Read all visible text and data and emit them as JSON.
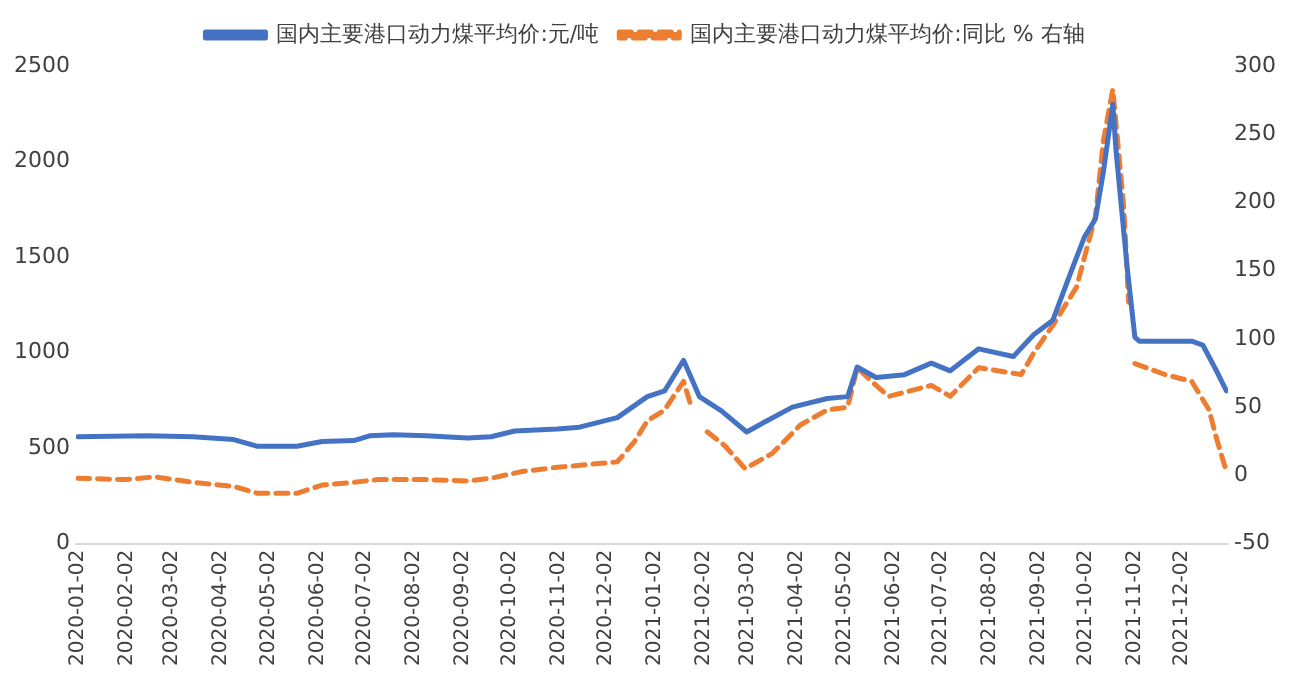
{
  "chart_data": {
    "type": "line",
    "legend": "top",
    "grid": false,
    "marker": "none",
    "xlim": [
      "2020-01-01",
      "2021-12-31"
    ],
    "xticks": [
      "2020-01-02",
      "2020-02-02",
      "2020-03-02",
      "2020-04-02",
      "2020-05-02",
      "2020-06-02",
      "2020-07-02",
      "2020-08-02",
      "2020-09-02",
      "2020-10-02",
      "2020-11-02",
      "2020-12-02",
      "2021-01-02",
      "2021-02-02",
      "2021-03-02",
      "2021-04-02",
      "2021-05-02",
      "2021-06-02",
      "2021-07-02",
      "2021-08-02",
      "2021-09-02",
      "2021-10-02",
      "2021-11-02",
      "2021-12-02"
    ],
    "ylim": [
      0,
      2500
    ],
    "yticks": [
      0,
      500,
      1000,
      1500,
      2000,
      2500
    ],
    "y2lim": [
      -50,
      300
    ],
    "y2ticks": [
      -50,
      0,
      50,
      100,
      150,
      200,
      250,
      300
    ],
    "series": [
      {
        "name": "国内主要港口动力煤平均价:元/吨",
        "color": "#4472c4",
        "line_style": "solid",
        "x": [
          "2020-01-02",
          "2020-02-15",
          "2020-03-15",
          "2020-04-10",
          "2020-04-25",
          "2020-05-20",
          "2020-06-05",
          "2020-06-25",
          "2020-07-05",
          "2020-07-20",
          "2020-08-10",
          "2020-09-05",
          "2020-09-20",
          "2020-10-05",
          "2020-11-01",
          "2020-11-15",
          "2020-12-09",
          "2020-12-28",
          "2021-01-08",
          "2021-01-20",
          "2021-01-30",
          "2021-02-13",
          "2021-03-01",
          "2021-03-13",
          "2021-03-30",
          "2021-04-21",
          "2021-05-04",
          "2021-05-10",
          "2021-05-22",
          "2021-06-09",
          "2021-06-26",
          "2021-07-08",
          "2021-07-26",
          "2021-08-17",
          "2021-08-30",
          "2021-09-11",
          "2021-09-24",
          "2021-10-01",
          "2021-10-08",
          "2021-10-13",
          "2021-10-19",
          "2021-10-21",
          "2021-10-28",
          "2021-11-02",
          "2021-11-05",
          "2021-12-08",
          "2021-12-15",
          "2021-12-24",
          "2021-12-30"
        ],
        "values": [
          560,
          565,
          560,
          545,
          510,
          510,
          535,
          540,
          565,
          570,
          565,
          553,
          560,
          590,
          600,
          610,
          660,
          770,
          800,
          960,
          770,
          695,
          585,
          640,
          715,
          760,
          770,
          925,
          870,
          885,
          945,
          905,
          1020,
          980,
          1095,
          1170,
          1455,
          1605,
          1700,
          1945,
          2300,
          2060,
          1455,
          1080,
          1060,
          1060,
          1040,
          900,
          800
        ]
      },
      {
        "name": "国内主要港口动力煤平均价:同比 % 右轴",
        "color": "#ed7d31",
        "line_style": "dashed",
        "axis": "y2",
        "x": [
          "2020-01-02",
          "2020-02-01",
          "2020-02-20",
          "2020-03-15",
          "2020-04-10",
          "2020-04-25",
          "2020-05-20",
          "2020-06-05",
          "2020-06-25",
          "2020-07-10",
          "2020-08-10",
          "2020-09-05",
          "2020-09-20",
          "2020-10-10",
          "2020-11-01",
          "2020-11-20",
          "2020-12-09",
          "2020-12-20",
          "2020-12-28",
          "2021-01-08",
          "2021-01-20",
          "2021-01-25",
          "2021-01-28",
          "2021-02-04",
          "2021-02-15",
          "2021-02-28",
          "2021-03-17",
          "2021-04-04",
          "2021-04-21",
          "2021-05-04",
          "2021-05-10",
          "2021-05-22",
          "2021-05-30",
          "2021-06-26",
          "2021-07-08",
          "2021-07-26",
          "2021-08-22",
          "2021-08-30",
          "2021-09-11",
          "2021-09-26",
          "2021-10-08",
          "2021-10-13",
          "2021-10-19",
          "2021-10-26",
          "2021-10-29",
          "2021-10-31",
          "2021-11-02",
          "2021-11-21",
          "2021-12-08",
          "2021-12-19",
          "2021-12-24",
          "2021-12-30"
        ],
        "values": [
          -2,
          -3,
          -1,
          -5,
          -8,
          -13,
          -13,
          -7,
          -5,
          -3,
          -3,
          -4,
          -2,
          3,
          6,
          8,
          10,
          25,
          40,
          48,
          69,
          50,
          null,
          32,
          22,
          5,
          16,
          37,
          48,
          50,
          79,
          66,
          58,
          66,
          58,
          79,
          74,
          90,
          110,
          138,
          190,
          245,
          283,
          196,
          127,
          null,
          82,
          74,
          69,
          48,
          26,
          3
        ]
      }
    ]
  }
}
